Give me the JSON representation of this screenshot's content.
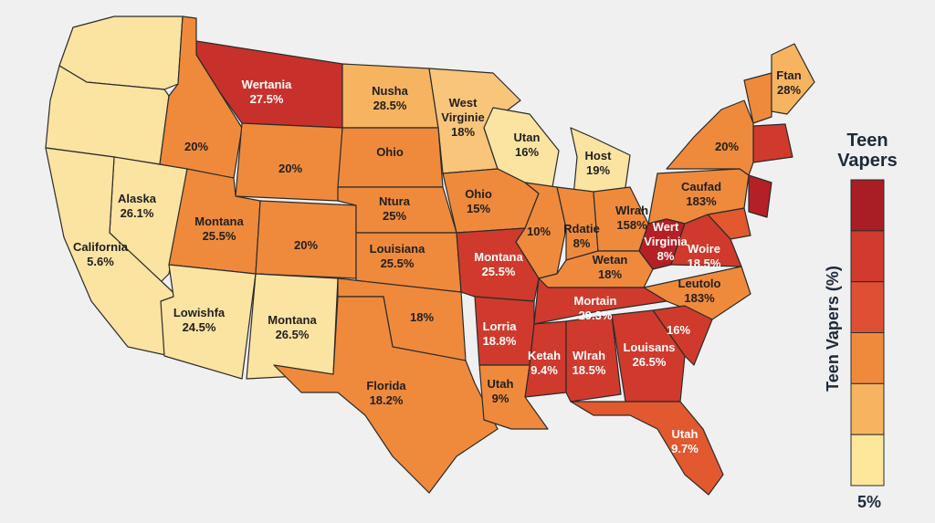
{
  "map": {
    "regions": [
      {
        "lines": [
          "Wertania",
          "27.5%"
        ],
        "color": "#c8312b"
      },
      {
        "lines": [
          "Nusha",
          "28.5%"
        ],
        "color": "#f6b460"
      },
      {
        "lines": [
          "West",
          "Virginie",
          "18%"
        ],
        "color": "#f9c57a"
      },
      {
        "lines": [
          "Utan",
          "16%"
        ],
        "color": "#fbe3a2"
      },
      {
        "lines": [
          "Host",
          "19%"
        ],
        "color": "#fbe3a2"
      },
      {
        "lines": [
          "Ftan",
          "28%"
        ],
        "color": "#f6b460"
      },
      {
        "lines": [
          "20%"
        ],
        "color": "#ef8a3c"
      },
      {
        "lines": [
          "20%"
        ],
        "color": "#ef8a3c"
      },
      {
        "lines": [
          "Ohio"
        ],
        "color": "#ef8a3c"
      },
      {
        "lines": [
          "20%"
        ],
        "color": "#ef8a3c"
      },
      {
        "lines": [
          "Alaska",
          "26.1%"
        ],
        "color": "#fbe3a2"
      },
      {
        "lines": [
          "California",
          "5.6%"
        ],
        "color": "#fbe3a2"
      },
      {
        "lines": [
          "Montana",
          "25.5%"
        ],
        "color": "#ef8a3c"
      },
      {
        "lines": [
          "20%"
        ],
        "color": "#ef8a3c"
      },
      {
        "lines": [
          "Ntura",
          "25%"
        ],
        "color": "#ef8a3c"
      },
      {
        "lines": [
          "Ohio",
          "15%"
        ],
        "color": "#ef8a3c"
      },
      {
        "lines": [
          "10%"
        ],
        "color": "#ef8a3c"
      },
      {
        "lines": [
          "Rdatie",
          "8%"
        ],
        "color": "#ef8a3c"
      },
      {
        "lines": [
          "Wlrah",
          "158%"
        ],
        "color": "#ef8a3c"
      },
      {
        "lines": [
          "Caufad",
          "183%"
        ],
        "color": "#ef8a3c"
      },
      {
        "lines": [
          "Wert",
          "Virginia",
          "8%"
        ],
        "color": "#b52026"
      },
      {
        "lines": [
          "Woire",
          "18.5%"
        ],
        "color": "#cf3a2d"
      },
      {
        "lines": [
          "Louisiana",
          "25.5%"
        ],
        "color": "#ef8a3c"
      },
      {
        "lines": [
          "Montana",
          "25.5%"
        ],
        "color": "#cf3a2d"
      },
      {
        "lines": [
          "Wetan",
          "18%"
        ],
        "color": "#ef8a3c"
      },
      {
        "lines": [
          "Leutolo",
          "183%"
        ],
        "color": "#ef8a3c"
      },
      {
        "lines": [
          "Lowishfa",
          "24.5%"
        ],
        "color": "#fbe3a2"
      },
      {
        "lines": [
          "Montana",
          "26.5%"
        ],
        "color": "#fbe3a2"
      },
      {
        "lines": [
          "18%"
        ],
        "color": "#ef8a3c"
      },
      {
        "lines": [
          "Mortain",
          "29.3%"
        ],
        "color": "#cf3a2d"
      },
      {
        "lines": [
          "Lorria",
          "18.8%"
        ],
        "color": "#cf3a2d"
      },
      {
        "lines": [
          "16%"
        ],
        "color": "#cf3a2d"
      },
      {
        "lines": [
          "Ketah",
          "9.4%"
        ],
        "color": "#cf3a2d"
      },
      {
        "lines": [
          "Wlrah",
          "18.5%"
        ],
        "color": "#cf3a2d"
      },
      {
        "lines": [
          "Louisans",
          "26.5%"
        ],
        "color": "#cf3a2d"
      },
      {
        "lines": [
          "Florida",
          "18.2%"
        ],
        "color": "#ef8a3c"
      },
      {
        "lines": [
          "Utah",
          "9%"
        ],
        "color": "#ef8a3c"
      },
      {
        "lines": [
          "Utah",
          "9.7%"
        ],
        "color": "#e2582f"
      }
    ],
    "legend": {
      "title_lines": [
        "Teen",
        "Vapers"
      ],
      "axis_label": "Teen Vapers (%)",
      "bottom_label": "5%",
      "colors": [
        "#a81e24",
        "#d13a2e",
        "#de4f33",
        "#ef8a3c",
        "#f6b460",
        "#fce79a"
      ]
    }
  }
}
